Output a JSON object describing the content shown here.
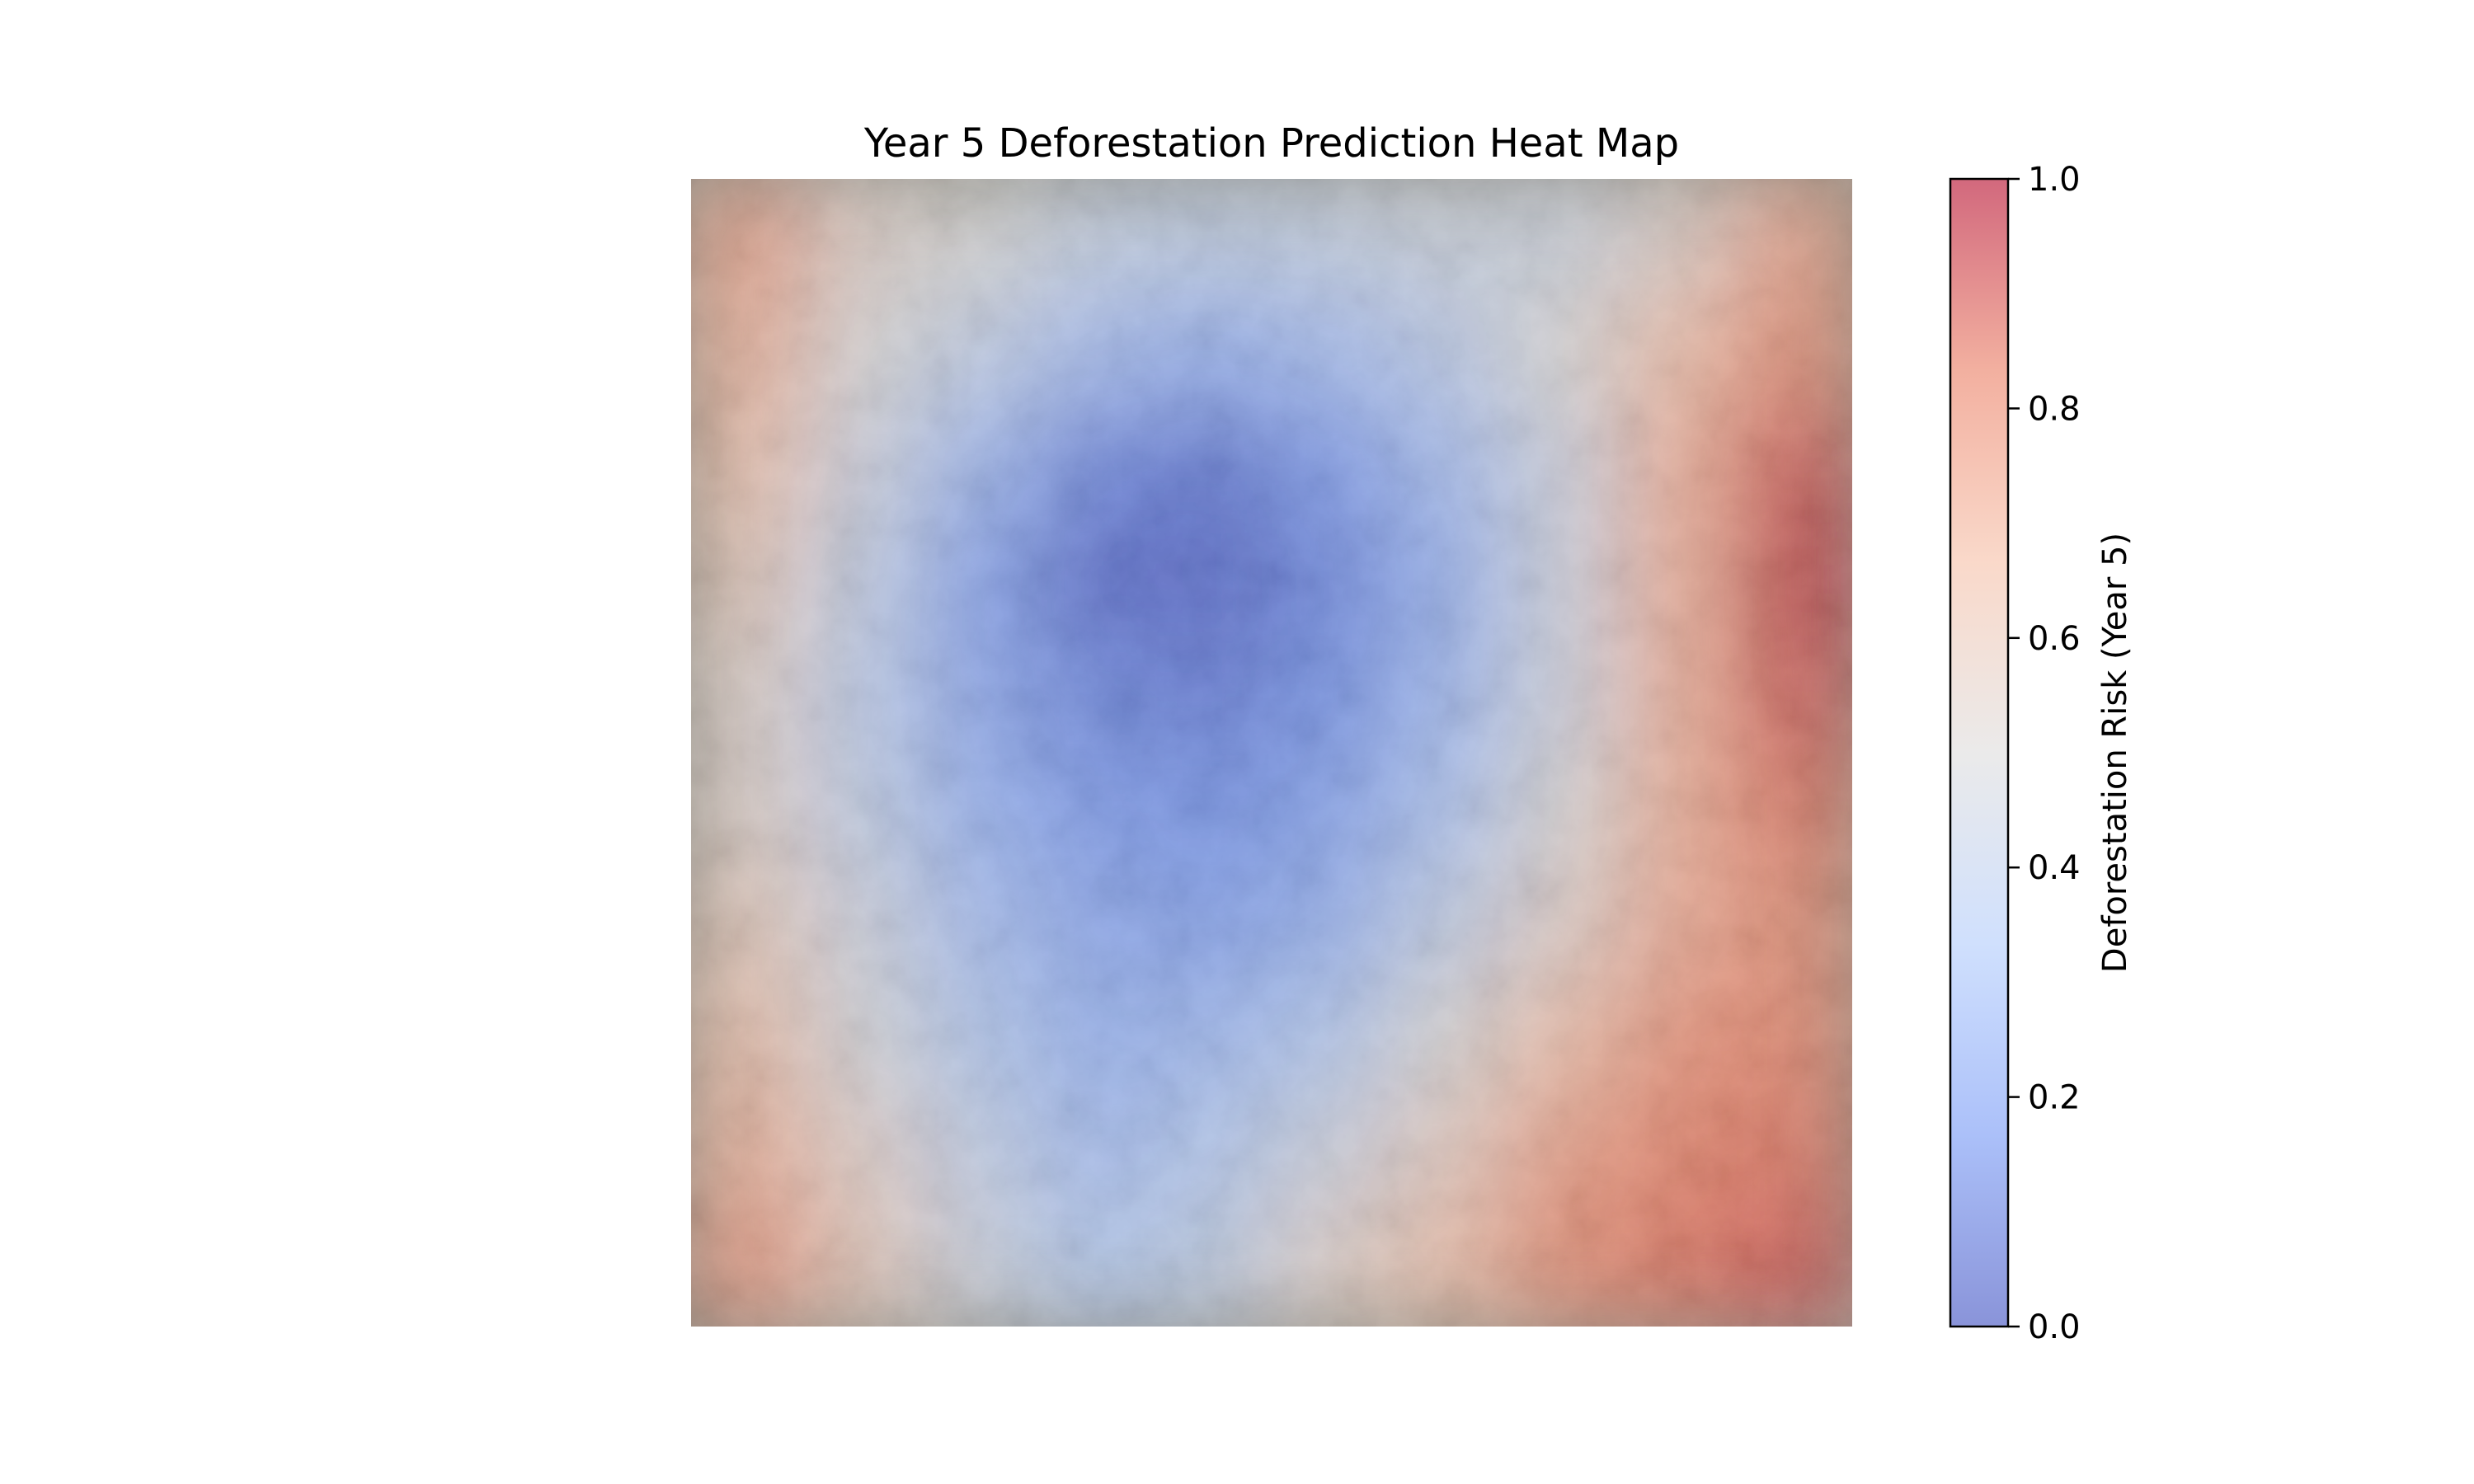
{
  "chart_data": {
    "type": "heatmap",
    "title": "Year 5 Deforestation Prediction Heat Map",
    "xlabel": "",
    "ylabel": "",
    "axis_visible": false,
    "grid": false,
    "colormap": "coolwarm",
    "overlay_alpha": 0.55,
    "colorbar": {
      "label": "Deforestation Risk (Year 5)",
      "range": [
        0.0,
        1.0
      ],
      "ticks": [
        0.0,
        0.2,
        0.4,
        0.6,
        0.8,
        1.0
      ],
      "tick_labels": [
        "0.0",
        "0.2",
        "0.4",
        "0.6",
        "0.8",
        "1.0"
      ],
      "colors": [
        "#3b4cc0",
        "#7396f5",
        "#b0cbfc",
        "#dddcdc",
        "#f6bfa6",
        "#ea7b60",
        "#b40426"
      ],
      "placement": "right"
    },
    "risk_grid": {
      "rows": 10,
      "cols": 10,
      "values": [
        [
          0.75,
          0.55,
          0.5,
          0.42,
          0.4,
          0.42,
          0.45,
          0.45,
          0.55,
          0.75
        ],
        [
          0.7,
          0.5,
          0.4,
          0.3,
          0.25,
          0.3,
          0.38,
          0.5,
          0.65,
          0.8
        ],
        [
          0.65,
          0.45,
          0.28,
          0.12,
          0.08,
          0.18,
          0.3,
          0.45,
          0.7,
          0.9
        ],
        [
          0.6,
          0.4,
          0.2,
          0.05,
          0.05,
          0.12,
          0.25,
          0.45,
          0.7,
          0.95
        ],
        [
          0.55,
          0.38,
          0.22,
          0.12,
          0.1,
          0.15,
          0.28,
          0.45,
          0.7,
          0.9
        ],
        [
          0.55,
          0.4,
          0.25,
          0.18,
          0.15,
          0.2,
          0.32,
          0.5,
          0.7,
          0.85
        ],
        [
          0.6,
          0.45,
          0.3,
          0.22,
          0.2,
          0.25,
          0.4,
          0.55,
          0.72,
          0.8
        ],
        [
          0.65,
          0.48,
          0.35,
          0.25,
          0.28,
          0.35,
          0.5,
          0.65,
          0.78,
          0.82
        ],
        [
          0.7,
          0.55,
          0.4,
          0.3,
          0.35,
          0.45,
          0.58,
          0.75,
          0.82,
          0.85
        ],
        [
          0.78,
          0.6,
          0.45,
          0.35,
          0.4,
          0.55,
          0.65,
          0.8,
          0.85,
          0.9
        ]
      ]
    }
  }
}
